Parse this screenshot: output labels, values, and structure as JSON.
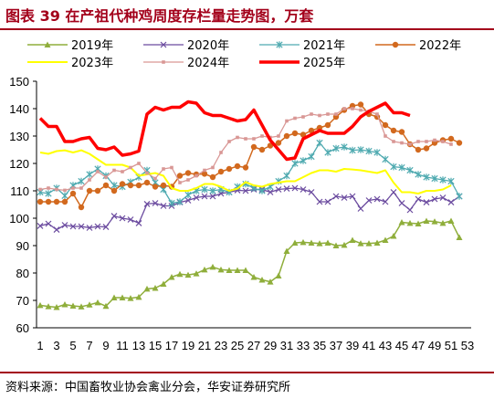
{
  "title": "图表 39  在产祖代种鸡周度存栏量走势图，万套",
  "source": "资料来源：中国畜牧业协会禽业分会，华安证券研究所",
  "chart_data": {
    "type": "line",
    "title": "在产祖代种鸡周度存栏量走势图，万套",
    "xlabel": "",
    "ylabel": "",
    "ylim": [
      60,
      150
    ],
    "yticks": [
      60,
      70,
      80,
      90,
      100,
      110,
      120,
      130,
      140,
      150
    ],
    "xlim": [
      1,
      53
    ],
    "xticks": [
      1,
      3,
      5,
      7,
      9,
      11,
      13,
      15,
      17,
      19,
      21,
      23,
      25,
      27,
      29,
      31,
      33,
      35,
      37,
      39,
      41,
      43,
      45,
      47,
      49,
      51,
      53
    ],
    "grid": false,
    "legend_position": "top",
    "series": [
      {
        "name": "2019年",
        "color": "#8fae3b",
        "marker": "triangle",
        "width": 1.5,
        "values": [
          68.2,
          67.8,
          67.5,
          68.5,
          68.0,
          67.7,
          68.4,
          69.2,
          67.9,
          71.0,
          71.0,
          70.8,
          71.2,
          74.2,
          74.5,
          76.0,
          78.5,
          79.6,
          79.3,
          79.8,
          81.2,
          82.2,
          81.2,
          81.0,
          81.0,
          81.0,
          78.5,
          77.5,
          76.8,
          79.0,
          88.0,
          91.0,
          91.2,
          91.0,
          90.8,
          91.0,
          90.0,
          90.2,
          92.0,
          90.8,
          90.8,
          91.0,
          92.0,
          93.5,
          98.5,
          98.2,
          98.0,
          99.0,
          98.8,
          98.2,
          99.0,
          93.0
        ]
      },
      {
        "name": "2020年",
        "color": "#6b4b9f",
        "marker": "x",
        "width": 1.3,
        "values": [
          97.2,
          98.0,
          95.8,
          97.5,
          97.0,
          97.0,
          96.5,
          97.0,
          96.8,
          100.8,
          100.0,
          99.5,
          98.2,
          105.2,
          105.5,
          104.5,
          104.5,
          105.8,
          106.5,
          107.5,
          108.0,
          108.0,
          109.0,
          109.5,
          110.2,
          110.0,
          110.5,
          110.5,
          109.5,
          110.5,
          110.8,
          111.0,
          110.5,
          109.5,
          106.0,
          106.0,
          108.0,
          107.5,
          108.0,
          103.5,
          106.5,
          107.0,
          106.0,
          109.5,
          105.5,
          103.0,
          107.0,
          105.8,
          107.0,
          107.5,
          105.8,
          108.0
        ]
      },
      {
        "name": "2021年",
        "color": "#4faab0",
        "marker": "star",
        "width": 1.3,
        "values": [
          109.5,
          109.0,
          111.0,
          108.2,
          112.0,
          113.5,
          116.0,
          118.0,
          115.5,
          112.0,
          111.5,
          113.2,
          115.0,
          117.5,
          113.0,
          110.5,
          105.5,
          106.0,
          108.5,
          110.0,
          110.5,
          110.0,
          110.5,
          109.5,
          111.5,
          112.5,
          111.0,
          110.0,
          111.5,
          113.5,
          115.5,
          120.0,
          121.0,
          122.5,
          127.5,
          124.0,
          125.5,
          126.0,
          124.8,
          125.0,
          124.5,
          124.0,
          121.5,
          118.8,
          118.5,
          117.5,
          116.0,
          115.0,
          114.5,
          114.0,
          113.5,
          108.0
        ]
      },
      {
        "name": "2022年",
        "color": "#d2691e",
        "marker": "circle",
        "width": 1.5,
        "values": [
          106.0,
          106.0,
          106.0,
          106.0,
          109.0,
          104.0,
          110.0,
          110.0,
          112.0,
          110.0,
          112.5,
          112.0,
          112.0,
          113.0,
          111.5,
          112.0,
          111.5,
          115.5,
          116.5,
          116.0,
          116.2,
          115.0,
          117.0,
          118.0,
          119.0,
          118.5,
          126.0,
          125.0,
          126.5,
          127.5,
          130.0,
          131.0,
          130.5,
          132.0,
          133.0,
          134.0,
          137.0,
          139.5,
          141.0,
          141.5,
          138.0,
          137.0,
          134.0,
          132.0,
          131.5,
          127.0,
          125.0,
          125.5,
          127.5,
          128.5,
          129.0,
          127.5
        ]
      },
      {
        "name": "2023年",
        "color": "#ffff00",
        "marker": "none",
        "width": 2,
        "values": [
          124.0,
          123.5,
          124.5,
          124.8,
          124.0,
          124.8,
          123.5,
          121.5,
          119.5,
          119.5,
          119.5,
          118.5,
          115.5,
          116.0,
          116.5,
          115.5,
          111.0,
          110.0,
          110.0,
          111.0,
          112.5,
          112.5,
          111.5,
          110.0,
          110.8,
          113.2,
          112.0,
          111.5,
          112.5,
          113.0,
          113.5,
          113.5,
          115.0,
          116.5,
          117.5,
          117.5,
          117.0,
          118.0,
          117.8,
          117.5,
          117.0,
          116.5,
          117.5,
          113.0,
          109.5,
          109.5,
          109.0,
          110.0,
          110.0,
          110.5,
          112.0
        ]
      },
      {
        "name": "2024年",
        "color": "#d99795",
        "marker": "square",
        "width": 1.3,
        "values": [
          110.5,
          111.0,
          110.5,
          110.2,
          111.0,
          111.0,
          114.0,
          117.0,
          115.0,
          117.5,
          117.0,
          118.5,
          120.0,
          116.5,
          114.5,
          118.0,
          118.5,
          113.0,
          114.0,
          115.5,
          117.5,
          118.5,
          124.0,
          128.0,
          129.5,
          129.0,
          129.0,
          130.0,
          129.5,
          130.0,
          135.5,
          136.5,
          137.0,
          138.0,
          137.5,
          138.0,
          138.0,
          140.0,
          140.0,
          139.5,
          139.0,
          138.0,
          130.0,
          128.0,
          127.5,
          127.0,
          128.0,
          128.0,
          128.5,
          128.0,
          127.0
        ]
      },
      {
        "name": "2025年",
        "color": "#ff0000",
        "marker": "none",
        "width": 3.5,
        "values": [
          136.5,
          133.5,
          133.5,
          128.0,
          128.0,
          129.0,
          129.5,
          125.5,
          125.0,
          126.0,
          123.0,
          123.5,
          124.5,
          138.0,
          140.5,
          139.5,
          140.5,
          140.5,
          142.5,
          142.0,
          138.5,
          137.5,
          137.5,
          136.5,
          135.5,
          136.0,
          139.5,
          134.0,
          128.5,
          125.0,
          121.5,
          122.0,
          129.0,
          130.5,
          132.0,
          131.0,
          131.0,
          131.0,
          133.5,
          137.0,
          139.0,
          140.5,
          142.0,
          138.5,
          138.5,
          137.5
        ]
      }
    ]
  }
}
